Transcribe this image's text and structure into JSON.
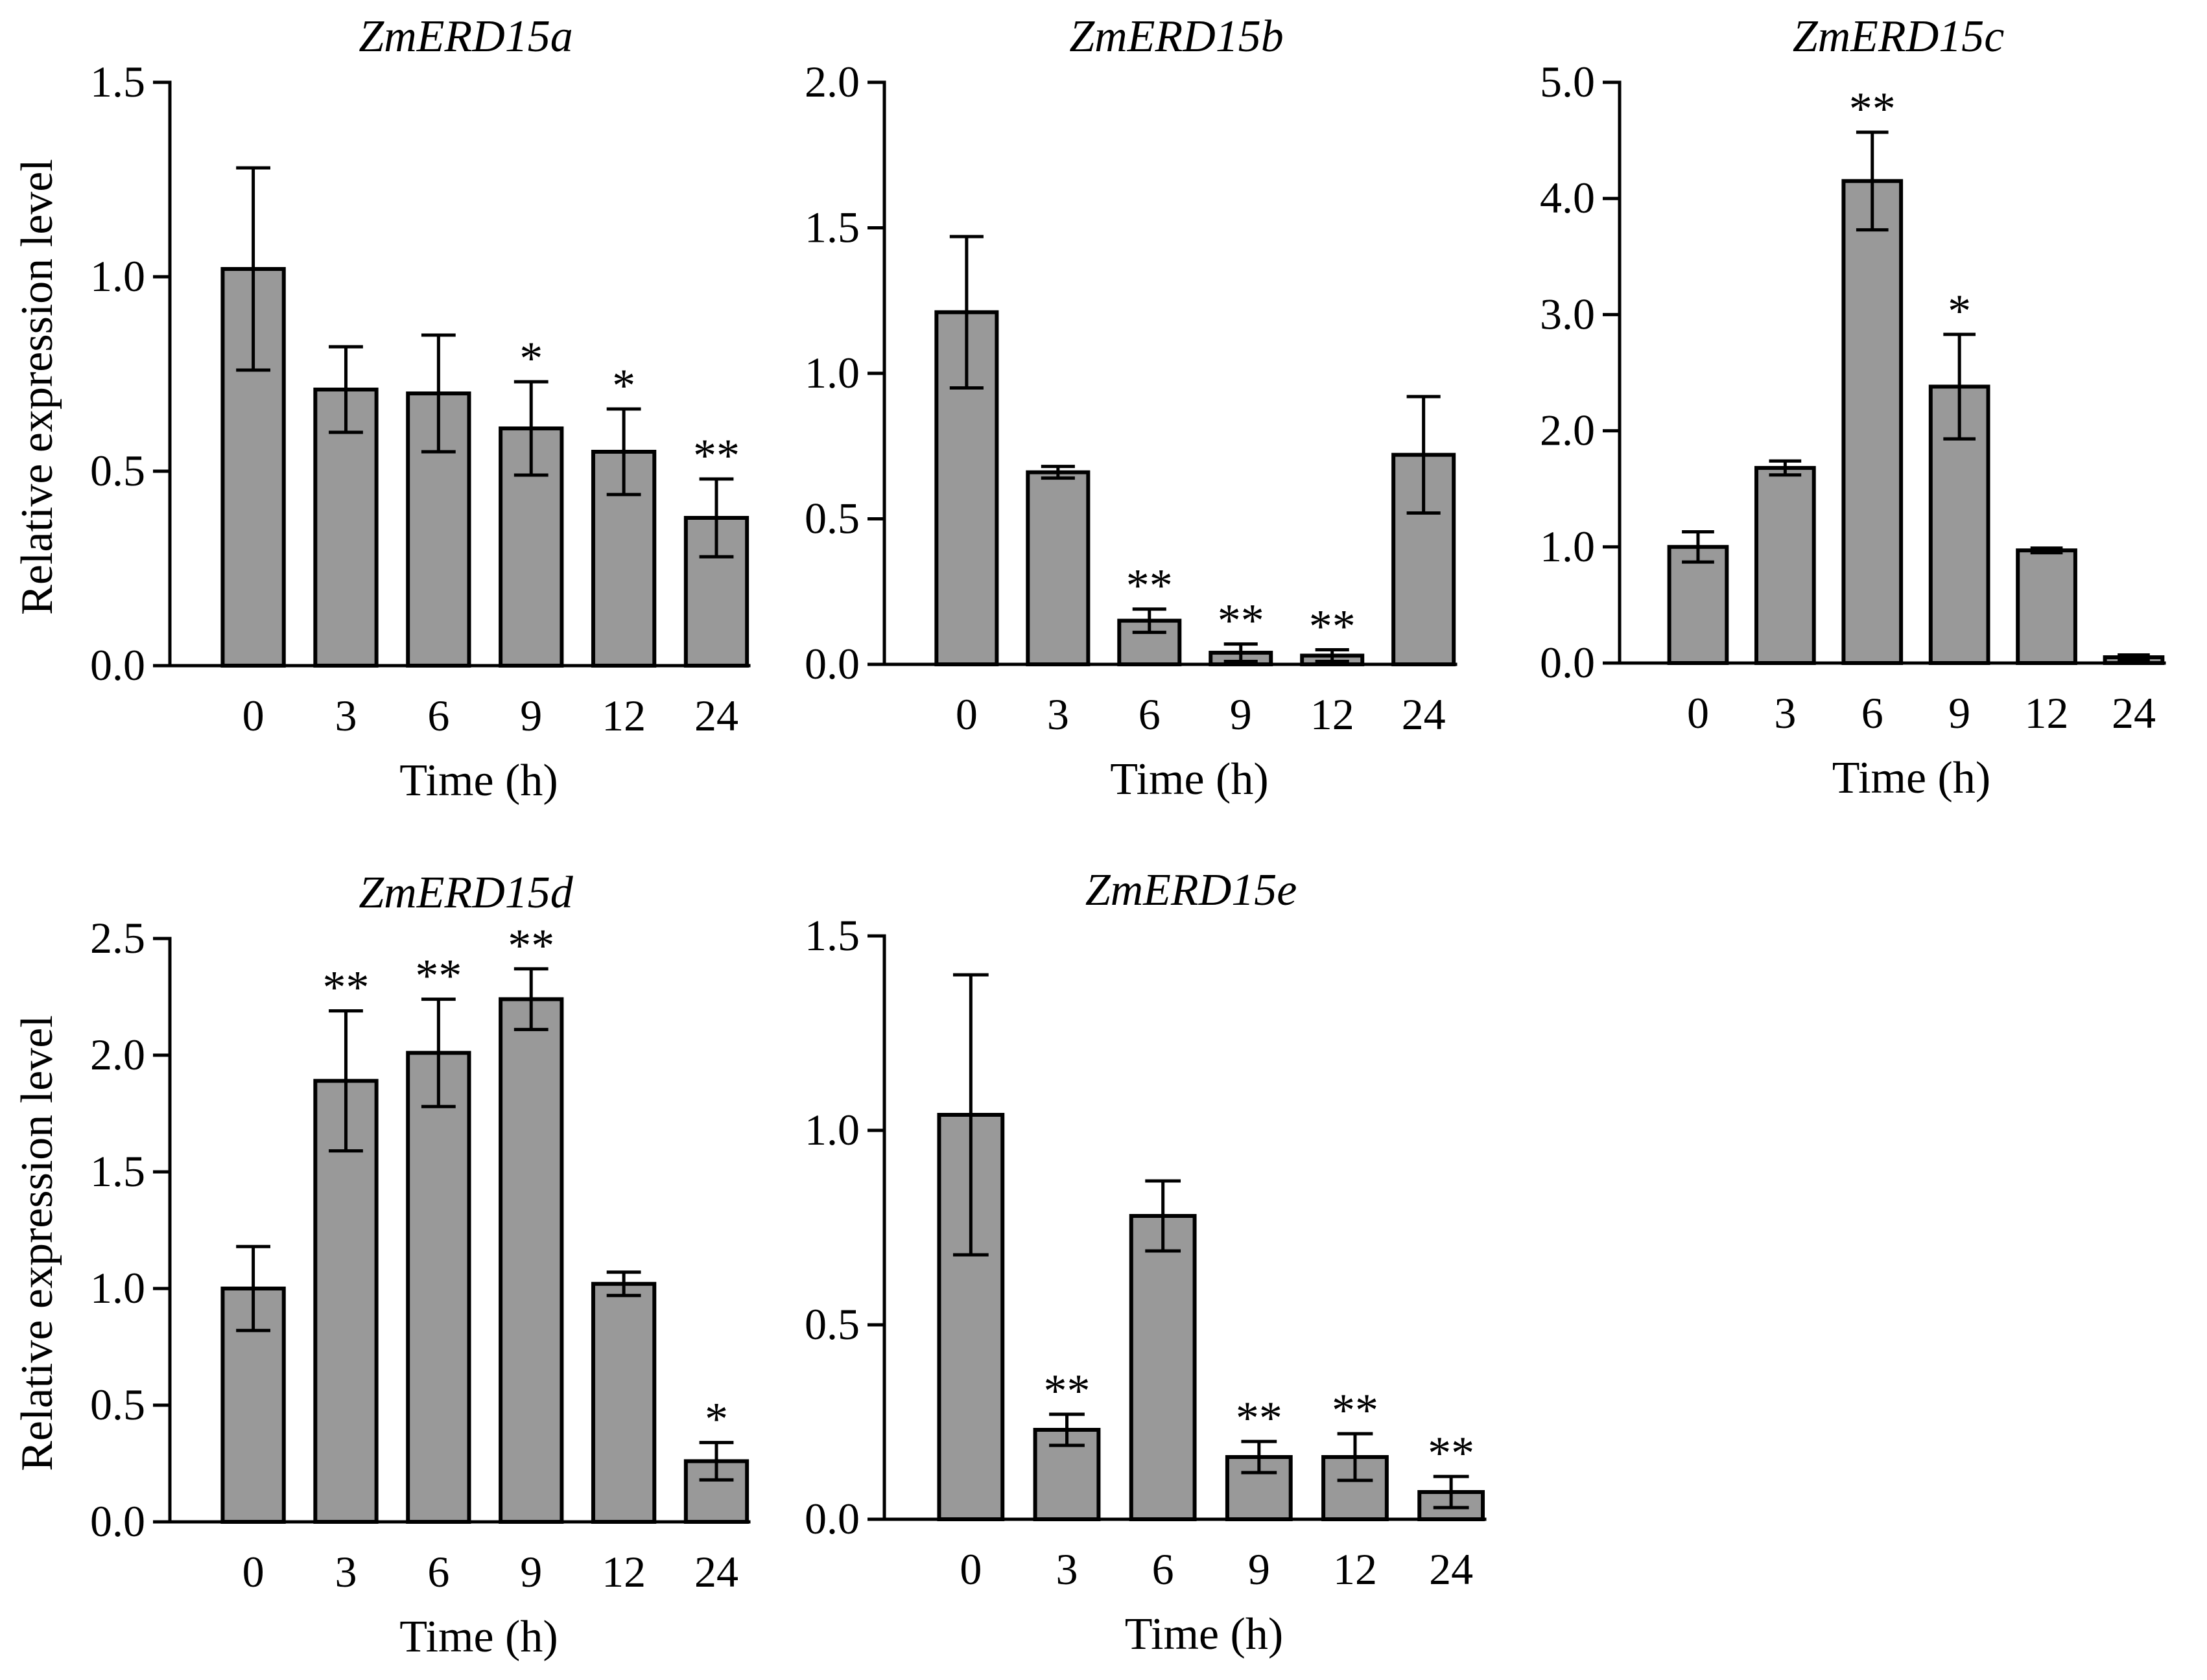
{
  "chart_data": [
    {
      "type": "bar",
      "title": "ZmERD15a",
      "xlabel": "Time  (h)",
      "ylabel": "Relative expression level",
      "categories": [
        "0",
        "3",
        "6",
        "9",
        "12",
        "24"
      ],
      "values": [
        1.02,
        0.71,
        0.7,
        0.61,
        0.55,
        0.38
      ],
      "errors": [
        0.26,
        0.11,
        0.15,
        0.12,
        0.11,
        0.1
      ],
      "significance": [
        "",
        "",
        "",
        "*",
        "*",
        "**"
      ],
      "ylim": [
        0,
        1.5
      ],
      "yticks": [
        "0.0",
        "0.5",
        "1.0",
        "1.5"
      ],
      "ytick_values": [
        0,
        0.5,
        1.0,
        1.5
      ]
    },
    {
      "type": "bar",
      "title": "ZmERD15b",
      "xlabel": "Time  (h)",
      "ylabel": "",
      "categories": [
        "0",
        "3",
        "6",
        "9",
        "12",
        "24"
      ],
      "values": [
        1.21,
        0.66,
        0.15,
        0.04,
        0.03,
        0.72
      ],
      "errors": [
        0.26,
        0.02,
        0.04,
        0.03,
        0.02,
        0.2
      ],
      "significance": [
        "",
        "",
        "**",
        "**",
        "**",
        ""
      ],
      "ylim": [
        0,
        2.0
      ],
      "yticks": [
        "0.0",
        "0.5",
        "1.0",
        "1.5",
        "2.0"
      ],
      "ytick_values": [
        0,
        0.5,
        1.0,
        1.5,
        2.0
      ]
    },
    {
      "type": "bar",
      "title": "ZmERD15c",
      "xlabel": "Time  (h)",
      "ylabel": "",
      "categories": [
        "0",
        "3",
        "6",
        "9",
        "12",
        "24"
      ],
      "values": [
        1.0,
        1.68,
        4.15,
        2.38,
        0.97,
        0.05
      ],
      "errors": [
        0.13,
        0.06,
        0.42,
        0.45,
        0.02,
        0.02
      ],
      "significance": [
        "",
        "",
        "**",
        "*",
        "",
        ""
      ],
      "ylim": [
        0,
        5.0
      ],
      "yticks": [
        "0.0",
        "1.0",
        "2.0",
        "3.0",
        "4.0",
        "5.0"
      ],
      "ytick_values": [
        0,
        1.0,
        2.0,
        3.0,
        4.0,
        5.0
      ]
    },
    {
      "type": "bar",
      "title": "ZmERD15d",
      "xlabel": "Time  (h)",
      "ylabel": "Relative expression level",
      "categories": [
        "0",
        "3",
        "6",
        "9",
        "12",
        "24"
      ],
      "values": [
        1.0,
        1.89,
        2.01,
        2.24,
        1.02,
        0.26
      ],
      "errors": [
        0.18,
        0.3,
        0.23,
        0.13,
        0.05,
        0.08
      ],
      "significance": [
        "",
        "**",
        "**",
        "**",
        "",
        "*"
      ],
      "ylim": [
        0,
        2.5
      ],
      "yticks": [
        "0.0",
        "0.5",
        "1.0",
        "1.5",
        "2.0",
        "2.5"
      ],
      "ytick_values": [
        0,
        0.5,
        1.0,
        1.5,
        2.0,
        2.5
      ]
    },
    {
      "type": "bar",
      "title": "ZmERD15e",
      "xlabel": "Time  (h)",
      "ylabel": "",
      "categories": [
        "0",
        "3",
        "6",
        "9",
        "12",
        "24"
      ],
      "values": [
        1.04,
        0.23,
        0.78,
        0.16,
        0.16,
        0.07
      ],
      "errors": [
        0.36,
        0.04,
        0.09,
        0.04,
        0.06,
        0.04
      ],
      "significance": [
        "",
        "**",
        "",
        "**",
        "**",
        "**"
      ],
      "ylim": [
        0,
        1.5
      ],
      "yticks": [
        "0.0",
        "0.5",
        "1.0",
        "1.5"
      ],
      "ytick_values": [
        0,
        0.5,
        1.0,
        1.5
      ]
    }
  ]
}
